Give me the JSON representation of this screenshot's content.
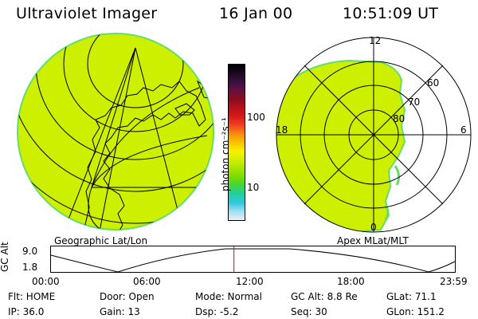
{
  "header": {
    "instrument": "Ultraviolet Imager",
    "date": "16 Jan 00",
    "time": "10:51:09 UT"
  },
  "colorbar": {
    "unit_label": "photon cm⁻²s⁻¹",
    "ticks": [
      "100",
      "10"
    ],
    "colors": [
      "#000000",
      "#1a0a20",
      "#3a1040",
      "#661040",
      "#8a0c1c",
      "#b4121c",
      "#d61a1a",
      "#f04020",
      "#f88a10",
      "#fcc000",
      "#f8f000",
      "#d0f000",
      "#a8e400",
      "#7cdc00",
      "#40d440",
      "#20d0a0",
      "#30c8e0",
      "#a0e0f0",
      "#e8f0f8"
    ]
  },
  "geo_map": {
    "label": "Geographic Lat/Lon",
    "fill_color": "#ccf000"
  },
  "polar_map": {
    "label": "Apex MLat/MLT",
    "fill_color": "#ccf000",
    "mlt_labels": {
      "top": "12",
      "left": "18",
      "right": "6",
      "bottom": "0"
    },
    "lat_labels": [
      "60",
      "70",
      "80"
    ]
  },
  "altitude_plot": {
    "ylabel": "GC Alt",
    "ytick_top": "9.0",
    "ytick_bottom": "1.8",
    "x_ticks": [
      "00:00",
      "06:00",
      "12:00",
      "18:00",
      "23:59"
    ],
    "current_time_fraction": 0.453,
    "marker_color": "#e00000"
  },
  "status": {
    "flt": "Flt: HOME",
    "door": "Door: Open",
    "mode": "Mode: Normal",
    "gc_alt": "GC Alt: 8.8 Re",
    "glat": "GLat:  71.1",
    "ip": "IP: 36.0",
    "gain": "Gain: 13",
    "dsp": "Dsp:    -5.2",
    "seq": "Seq: 30",
    "glon": "GLon: 151.2"
  }
}
